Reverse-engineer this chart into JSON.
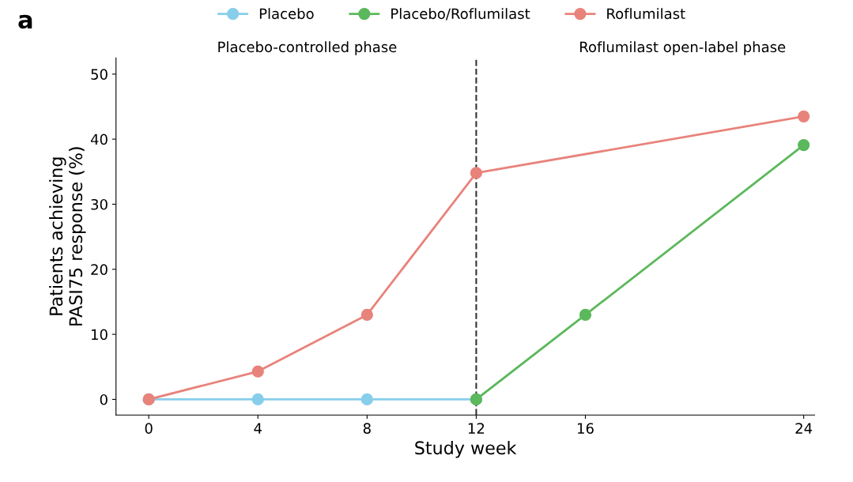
{
  "chart_data": {
    "type": "line",
    "xlabel": "Study week",
    "ylabel": "Patients achieving\nPASI75 response (%)",
    "series": [
      {
        "name": "Placebo",
        "color": "#87ceeb",
        "x": [
          0,
          4,
          8,
          12
        ],
        "values": [
          0,
          0,
          0,
          0
        ]
      },
      {
        "name": "Placebo/Roflumilast",
        "color": "#5cb85c",
        "x": [
          12,
          16,
          24
        ],
        "values": [
          0,
          13,
          39.1
        ]
      },
      {
        "name": "Roflumilast",
        "color": "#e8837b",
        "x": [
          0,
          4,
          8,
          12,
          24
        ],
        "values": [
          0,
          4.3,
          13,
          34.8,
          43.5
        ]
      }
    ],
    "xlim": [
      -1.2,
      24.4
    ],
    "ylim": [
      -2.4,
      52.5
    ],
    "xticks": [
      0,
      4,
      8,
      12,
      16,
      24
    ],
    "yticks": [
      0,
      10,
      20,
      30,
      40,
      50
    ],
    "ref_lines": [
      {
        "axis": "x",
        "value": 12,
        "color": "#333333",
        "line_style": "dashed"
      }
    ],
    "annotations": [
      "a",
      "Placebo-controlled phase",
      "Roflumilast open-label phase"
    ],
    "legend": "top",
    "marker": "circle",
    "line_style": "solid",
    "grid": false
  }
}
